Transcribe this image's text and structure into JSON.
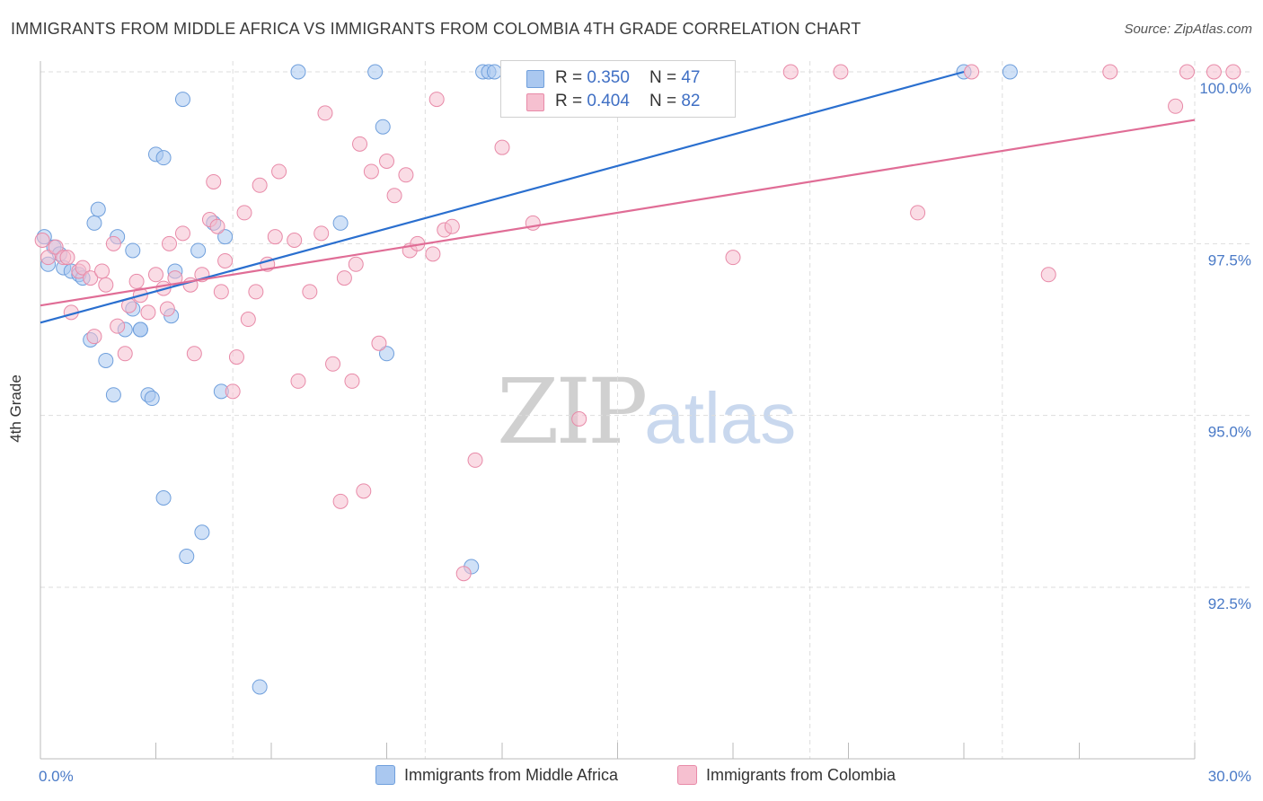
{
  "title": "IMMIGRANTS FROM MIDDLE AFRICA VS IMMIGRANTS FROM COLOMBIA 4TH GRADE CORRELATION CHART",
  "source": "Source: ZipAtlas.com",
  "watermark": {
    "zip": "ZIP",
    "atlas": "atlas"
  },
  "legend": {
    "r_label": "R =",
    "n_label": "N =",
    "series": [
      {
        "r": "0.350",
        "n": "47"
      },
      {
        "r": "0.404",
        "n": "82"
      }
    ]
  },
  "bottom_legend": [
    "Immigrants from Middle Africa",
    "Immigrants from Colombia"
  ],
  "colors": {
    "blue_fill": "#aac8f0",
    "blue_stroke": "#6f9fdc",
    "blue_line": "#2a6fcf",
    "pink_fill": "#f6c0d0",
    "pink_stroke": "#e88aa8",
    "pink_line": "#e06d96",
    "tick_text": "#4a7ac7",
    "grid": "#dddddd"
  },
  "chart_data": {
    "type": "scatter",
    "title": "IMMIGRANTS FROM MIDDLE AFRICA VS IMMIGRANTS FROM COLOMBIA 4TH GRADE CORRELATION CHART",
    "xlabel": "",
    "ylabel": "4th Grade",
    "xlim": [
      0,
      30
    ],
    "ylim": [
      90.5,
      100.6
    ],
    "x_tick_labels": [
      "0.0%",
      "30.0%"
    ],
    "y_ticks": [
      92.5,
      95.0,
      97.5,
      100.0
    ],
    "y_tick_labels": [
      "92.5%",
      "95.0%",
      "97.5%",
      "100.0%"
    ],
    "grid": true,
    "series": [
      {
        "name": "Immigrants from Middle Africa",
        "r": 0.35,
        "n": 47,
        "trend": [
          [
            0,
            96.35
          ],
          [
            24.0,
            100.0
          ]
        ],
        "points": [
          [
            0.1,
            97.6
          ],
          [
            0.2,
            97.2
          ],
          [
            0.35,
            97.45
          ],
          [
            0.5,
            97.35
          ],
          [
            0.6,
            97.15
          ],
          [
            0.8,
            97.1
          ],
          [
            1.0,
            97.05
          ],
          [
            1.1,
            97.0
          ],
          [
            1.3,
            96.1
          ],
          [
            1.4,
            97.8
          ],
          [
            1.5,
            98.0
          ],
          [
            1.7,
            95.8
          ],
          [
            1.9,
            95.3
          ],
          [
            2.0,
            97.6
          ],
          [
            2.2,
            96.25
          ],
          [
            2.4,
            96.55
          ],
          [
            2.4,
            97.4
          ],
          [
            2.6,
            96.25
          ],
          [
            2.6,
            96.25
          ],
          [
            2.8,
            95.3
          ],
          [
            2.9,
            95.25
          ],
          [
            3.0,
            98.8
          ],
          [
            3.2,
            93.8
          ],
          [
            3.2,
            98.75
          ],
          [
            3.4,
            96.45
          ],
          [
            3.5,
            97.1
          ],
          [
            3.7,
            99.6
          ],
          [
            3.8,
            92.95
          ],
          [
            4.1,
            97.4
          ],
          [
            4.2,
            93.3
          ],
          [
            4.5,
            97.8
          ],
          [
            4.7,
            95.35
          ],
          [
            4.8,
            97.6
          ],
          [
            5.7,
            91.05
          ],
          [
            6.7,
            100.0
          ],
          [
            7.8,
            97.8
          ],
          [
            8.7,
            100.0
          ],
          [
            8.9,
            99.2
          ],
          [
            9.0,
            95.9
          ],
          [
            11.2,
            92.8
          ],
          [
            11.5,
            100.0
          ],
          [
            11.65,
            100.0
          ],
          [
            11.8,
            100.0
          ],
          [
            12.2,
            100.0
          ],
          [
            13.0,
            100.0
          ],
          [
            24.0,
            100.0
          ],
          [
            25.2,
            100.0
          ]
        ]
      },
      {
        "name": "Immigrants from Colombia",
        "r": 0.404,
        "n": 82,
        "trend": [
          [
            0,
            96.6
          ],
          [
            30.0,
            99.3
          ]
        ],
        "points": [
          [
            0.05,
            97.55
          ],
          [
            0.2,
            97.3
          ],
          [
            0.4,
            97.45
          ],
          [
            0.6,
            97.3
          ],
          [
            0.7,
            97.3
          ],
          [
            0.8,
            96.5
          ],
          [
            1.0,
            97.1
          ],
          [
            1.1,
            97.15
          ],
          [
            1.3,
            97.0
          ],
          [
            1.4,
            96.15
          ],
          [
            1.6,
            97.1
          ],
          [
            1.7,
            96.9
          ],
          [
            1.9,
            97.5
          ],
          [
            2.0,
            96.3
          ],
          [
            2.2,
            95.9
          ],
          [
            2.3,
            96.6
          ],
          [
            2.5,
            96.95
          ],
          [
            2.6,
            96.75
          ],
          [
            2.8,
            96.5
          ],
          [
            3.0,
            97.05
          ],
          [
            3.2,
            96.85
          ],
          [
            3.3,
            96.55
          ],
          [
            3.35,
            97.5
          ],
          [
            3.5,
            97.0
          ],
          [
            3.7,
            97.65
          ],
          [
            3.9,
            96.9
          ],
          [
            4.0,
            95.9
          ],
          [
            4.2,
            97.05
          ],
          [
            4.4,
            97.85
          ],
          [
            4.5,
            98.4
          ],
          [
            4.6,
            97.75
          ],
          [
            4.7,
            96.8
          ],
          [
            4.8,
            97.25
          ],
          [
            5.0,
            95.35
          ],
          [
            5.1,
            95.85
          ],
          [
            5.3,
            97.95
          ],
          [
            5.4,
            96.4
          ],
          [
            5.6,
            96.8
          ],
          [
            5.7,
            98.35
          ],
          [
            5.9,
            97.2
          ],
          [
            6.1,
            97.6
          ],
          [
            6.2,
            98.55
          ],
          [
            6.6,
            97.55
          ],
          [
            6.7,
            95.5
          ],
          [
            7.0,
            96.8
          ],
          [
            7.3,
            97.65
          ],
          [
            7.4,
            99.4
          ],
          [
            7.6,
            95.75
          ],
          [
            7.8,
            93.75
          ],
          [
            7.9,
            97.0
          ],
          [
            8.1,
            95.5
          ],
          [
            8.2,
            97.2
          ],
          [
            8.3,
            98.95
          ],
          [
            8.4,
            93.9
          ],
          [
            8.6,
            98.55
          ],
          [
            8.8,
            96.05
          ],
          [
            9.0,
            98.7
          ],
          [
            9.2,
            98.2
          ],
          [
            9.5,
            98.5
          ],
          [
            9.6,
            97.4
          ],
          [
            9.8,
            97.5
          ],
          [
            10.2,
            97.35
          ],
          [
            10.3,
            99.6
          ],
          [
            10.5,
            97.7
          ],
          [
            10.7,
            97.75
          ],
          [
            11.0,
            92.7
          ],
          [
            11.3,
            94.35
          ],
          [
            12.0,
            98.9
          ],
          [
            12.8,
            97.8
          ],
          [
            14.0,
            94.95
          ],
          [
            17.6,
            100.0
          ],
          [
            18.0,
            97.3
          ],
          [
            19.5,
            100.0
          ],
          [
            20.8,
            100.0
          ],
          [
            22.8,
            97.95
          ],
          [
            24.2,
            100.0
          ],
          [
            26.2,
            97.05
          ],
          [
            27.8,
            100.0
          ],
          [
            29.5,
            99.5
          ],
          [
            29.8,
            100.0
          ],
          [
            30.5,
            100.0
          ],
          [
            31.0,
            100.0
          ]
        ]
      }
    ]
  }
}
